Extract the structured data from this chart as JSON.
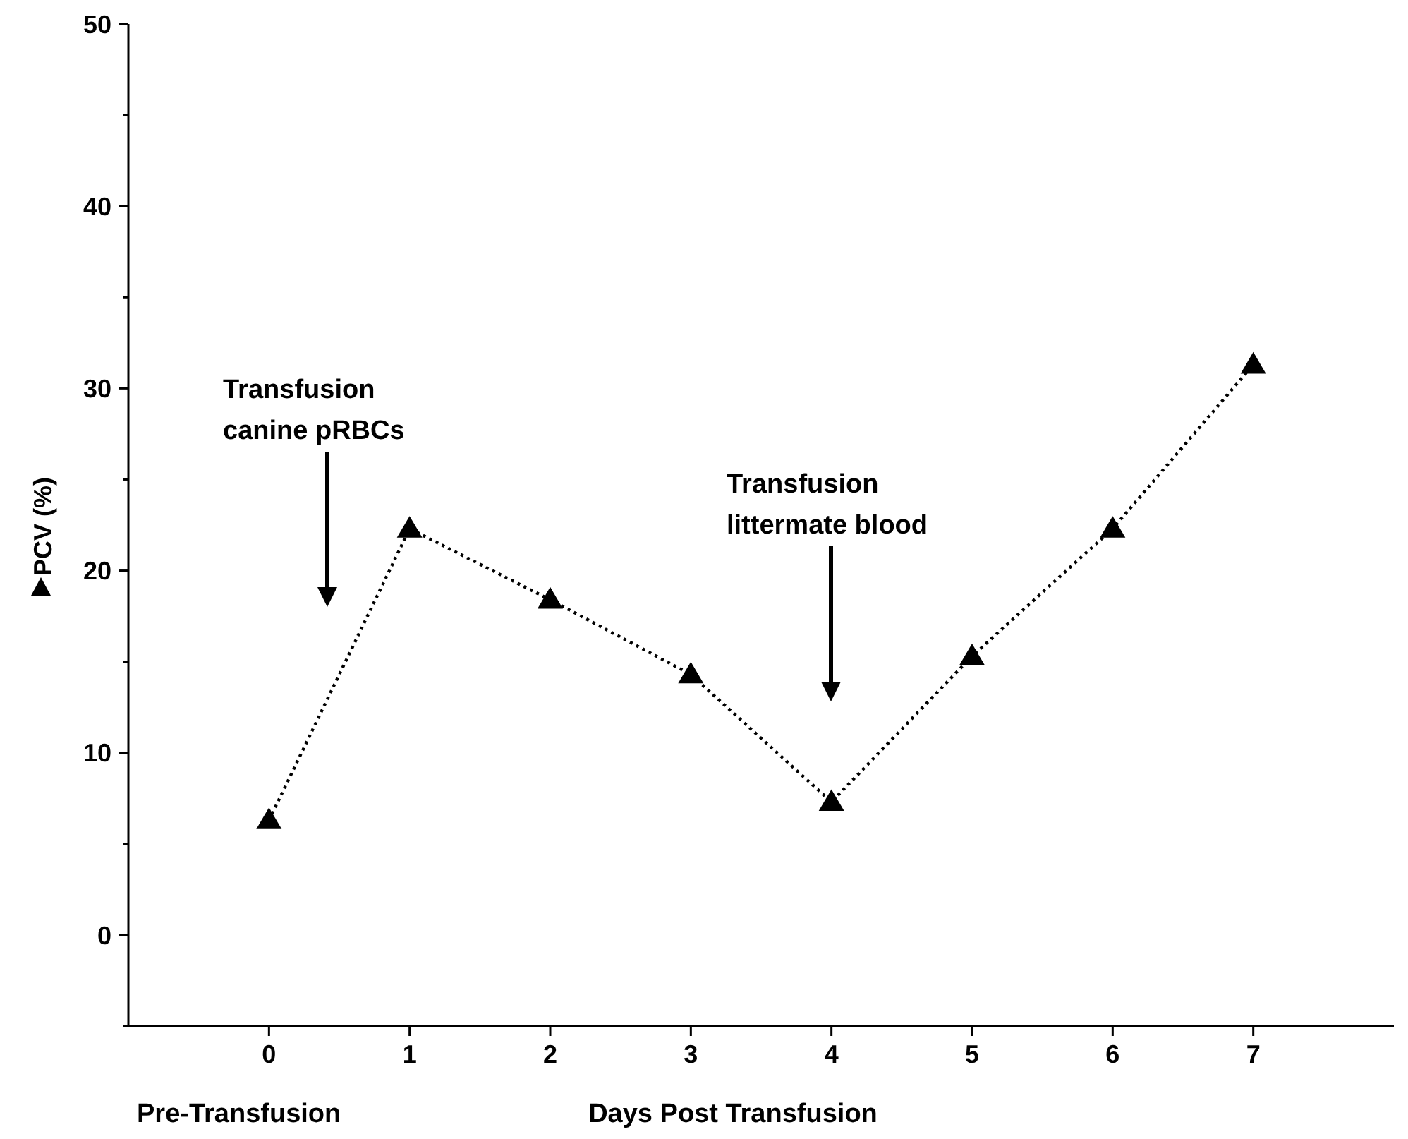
{
  "chart_data": {
    "type": "line",
    "xlabel": "Days Post Transfusion",
    "ylabel": "PCV (%)",
    "x": [
      0,
      1,
      2,
      3,
      4,
      5,
      6,
      7
    ],
    "series": [
      {
        "color": "#000000",
        "values": [
          6.3,
          22.3,
          18.4,
          14.3,
          7.3,
          15.3,
          22.3,
          31.3
        ]
      }
    ],
    "xlim": [
      -1,
      8
    ],
    "xticks": [
      0,
      1,
      2,
      3,
      4,
      5,
      6,
      7
    ],
    "ylim": [
      -5,
      50
    ],
    "yticks": [
      {
        "value": -5,
        "label": null
      },
      0,
      {
        "value": 5,
        "label": null
      },
      10,
      {
        "value": 15,
        "label": null
      },
      20,
      {
        "value": 25,
        "label": null
      },
      30,
      {
        "value": 35,
        "label": null
      },
      40,
      {
        "value": 45,
        "label": null
      },
      50
    ],
    "marker": "triangle",
    "line_style": "dotted",
    "grid": false,
    "annotations": [
      "Transfusion\ncanine pRBCs",
      "Transfusion\nlittermate blood",
      "Pre-Transfusion"
    ]
  }
}
